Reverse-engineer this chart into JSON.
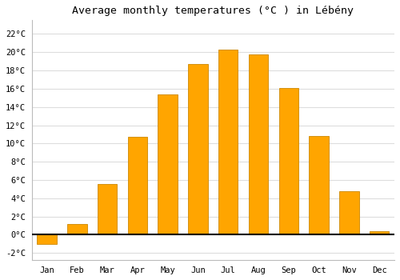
{
  "title": "Average monthly temperatures (°C ) in Lébény",
  "months": [
    "Jan",
    "Feb",
    "Mar",
    "Apr",
    "May",
    "Jun",
    "Jul",
    "Aug",
    "Sep",
    "Oct",
    "Nov",
    "Dec"
  ],
  "values": [
    -1.0,
    1.2,
    5.6,
    10.7,
    15.4,
    18.7,
    20.3,
    19.8,
    16.1,
    10.8,
    4.8,
    0.4
  ],
  "bar_color_pos": "#FFA500",
  "bar_color_neg": "#FFA500",
  "bar_edge_color": "#CC8800",
  "ylim": [
    -2.8,
    23.5
  ],
  "yticks": [
    -2,
    0,
    2,
    4,
    6,
    8,
    10,
    12,
    14,
    16,
    18,
    20,
    22
  ],
  "ytick_labels": [
    "-2°C",
    "0°C",
    "2°C",
    "4°C",
    "6°C",
    "8°C",
    "10°C",
    "12°C",
    "14°C",
    "16°C",
    "18°C",
    "20°C",
    "22°C"
  ],
  "background_color": "#ffffff",
  "grid_color": "#dddddd",
  "title_fontsize": 9.5,
  "tick_fontsize": 7.5,
  "bar_width": 0.65
}
